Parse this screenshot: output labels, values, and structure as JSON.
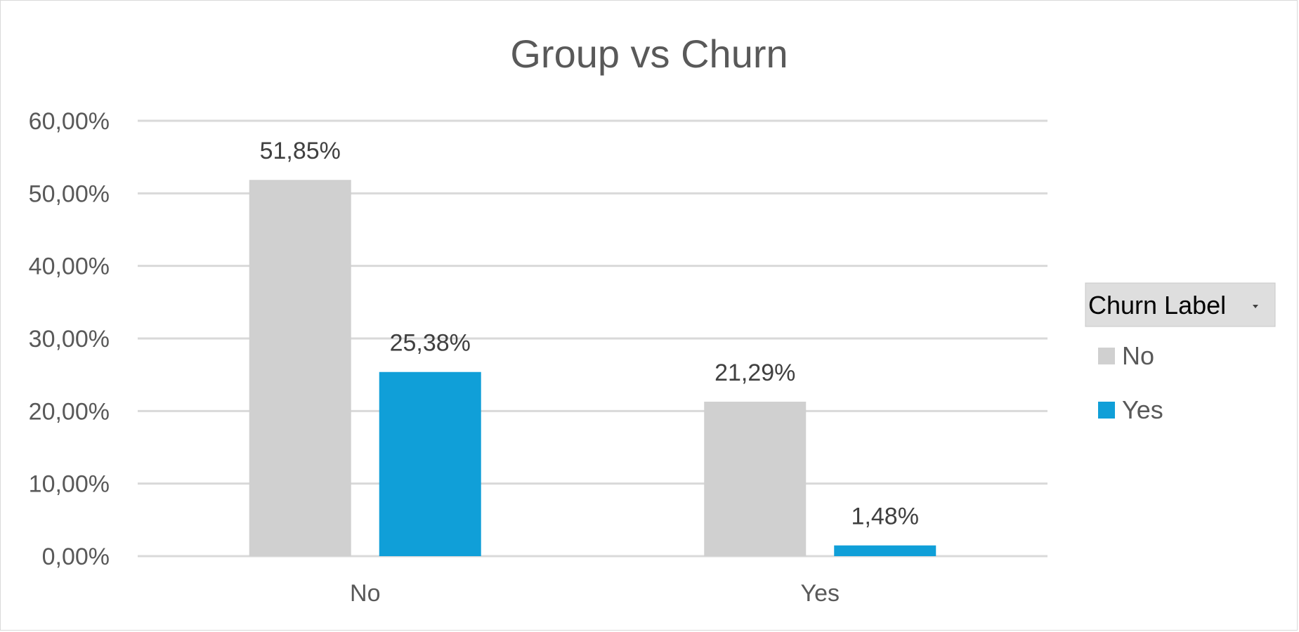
{
  "chart_data": {
    "type": "bar",
    "title": "Group vs Churn",
    "xlabel": "",
    "ylabel": "",
    "categories": [
      "No",
      "Yes"
    ],
    "series": [
      {
        "name": "No",
        "values": [
          51.85,
          21.29
        ],
        "labels": [
          "51,85%",
          "21,29%"
        ],
        "color": "#d0d0d0"
      },
      {
        "name": "Yes",
        "values": [
          25.38,
          1.48
        ],
        "labels": [
          "25,38%",
          "1,48%"
        ],
        "color": "#109fd8"
      }
    ],
    "ylim": [
      0,
      60
    ],
    "yticks": [
      0,
      10,
      20,
      30,
      40,
      50,
      60
    ],
    "ytick_labels": [
      "0,00%",
      "10,00%",
      "20,00%",
      "30,00%",
      "40,00%",
      "50,00%",
      "60,00%"
    ],
    "grid": true,
    "legend": {
      "title": "Churn Label",
      "placement": "right",
      "filter_icon": "dropdown-arrow-icon"
    }
  }
}
